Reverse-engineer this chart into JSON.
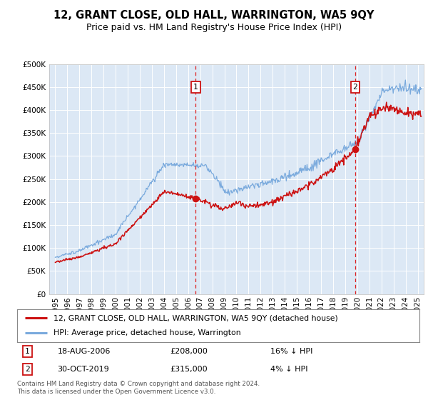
{
  "title": "12, GRANT CLOSE, OLD HALL, WARRINGTON, WA5 9QY",
  "subtitle": "Price paid vs. HM Land Registry's House Price Index (HPI)",
  "legend_line1": "12, GRANT CLOSE, OLD HALL, WARRINGTON, WA5 9QY (detached house)",
  "legend_line2": "HPI: Average price, detached house, Warrington",
  "transaction1_date": "18-AUG-2006",
  "transaction1_price": 208000,
  "transaction1_label": "16% ↓ HPI",
  "transaction1_year": 2006.63,
  "transaction2_date": "30-OCT-2019",
  "transaction2_price": 315000,
  "transaction2_label": "4% ↓ HPI",
  "transaction2_year": 2019.83,
  "footer": "Contains HM Land Registry data © Crown copyright and database right 2024.\nThis data is licensed under the Open Government Licence v3.0.",
  "hpi_color": "#7aaadd",
  "price_color": "#cc1111",
  "background_color": "#dce8f5",
  "ylim": [
    0,
    500000
  ],
  "xmin": 1994.5,
  "xmax": 2025.5
}
